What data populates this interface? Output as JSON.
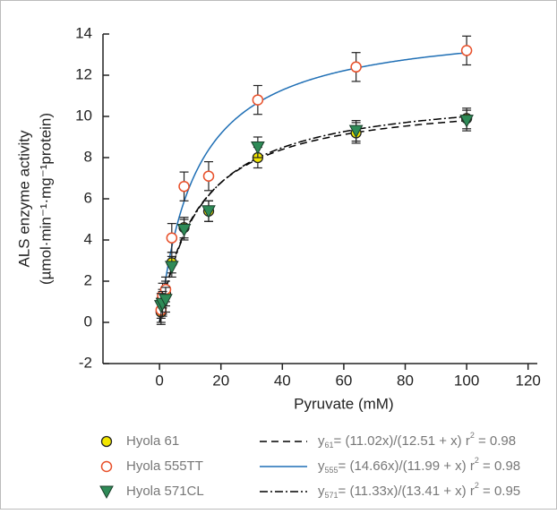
{
  "chart_data": {
    "type": "scatter",
    "x_label": "Pyruvate (mM)",
    "y_label": [
      "ALS enzyme activity",
      "(µmol·min⁻¹·mg⁻¹protein)"
    ],
    "x": [
      0.5,
      1,
      2,
      4,
      8,
      16,
      32,
      64,
      100
    ],
    "series": [
      {
        "name": "Hyola 61",
        "color": "#f2e600",
        "marker": "circle",
        "values": [
          0.5,
          1.0,
          1.4,
          2.9,
          4.6,
          5.4,
          8.0,
          9.2,
          9.9
        ],
        "errors": [
          0.6,
          0.6,
          0.6,
          0.5,
          0.5,
          0.5,
          0.5,
          0.5,
          0.5
        ]
      },
      {
        "name": "Hyola 555TT",
        "color": "#e8502a",
        "marker": "open-circle",
        "values": [
          0.6,
          1.3,
          1.6,
          4.1,
          6.6,
          7.1,
          10.8,
          12.4,
          13.2
        ],
        "errors": [
          0.6,
          0.6,
          0.6,
          0.7,
          0.7,
          0.7,
          0.7,
          0.7,
          0.7
        ]
      },
      {
        "name": "Hyola 571CL",
        "color": "#2e8b57",
        "marker": "triangle",
        "values": [
          0.8,
          0.9,
          1.1,
          2.7,
          4.5,
          5.4,
          8.5,
          9.3,
          9.8
        ],
        "errors": [
          0.6,
          0.6,
          0.6,
          0.5,
          0.5,
          0.5,
          0.5,
          0.5,
          0.5
        ]
      }
    ],
    "fits": [
      {
        "vmax": 11.02,
        "km": 12.51,
        "color": "#000000",
        "dash": "8 5",
        "label": [
          "y",
          "61",
          "= (11.02x)/(12.51 + x) r",
          "2",
          " = 0.98"
        ]
      },
      {
        "vmax": 14.66,
        "km": 11.99,
        "color": "#1f6fb5",
        "dash": "none",
        "label": [
          "y",
          "555",
          "= (14.66x)/(11.99 + x) r",
          "2",
          " = 0.98"
        ]
      },
      {
        "vmax": 11.33,
        "km": 13.41,
        "color": "#000000",
        "dash": "9 3 2 3",
        "label": [
          "y",
          "571",
          "= (11.33x)/(13.41 + x) r",
          "2",
          " = 0.95"
        ]
      }
    ],
    "xlim": [
      -18.4,
      123
    ],
    "xticks": [
      0,
      20,
      40,
      60,
      80,
      100,
      120
    ],
    "ylim": [
      -2,
      14
    ],
    "yticks": [
      -2,
      0,
      2,
      4,
      6,
      8,
      10,
      12,
      14
    ]
  }
}
